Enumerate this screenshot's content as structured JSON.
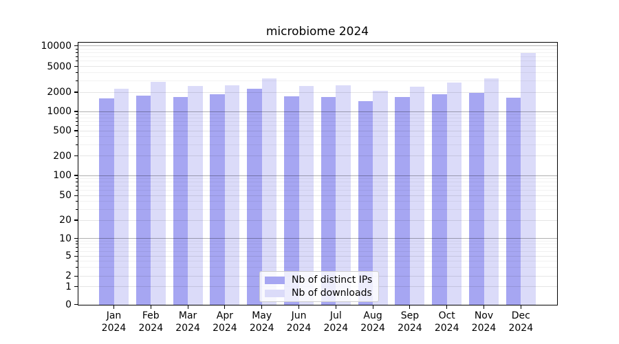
{
  "chart_data": {
    "type": "bar",
    "title": "microbiome 2024",
    "categories": [
      "Jan 2024",
      "Feb 2024",
      "Mar 2024",
      "Apr 2024",
      "May 2024",
      "Jun 2024",
      "Jul 2024",
      "Aug 2024",
      "Sep 2024",
      "Oct 2024",
      "Nov 2024",
      "Dec 2024"
    ],
    "series": [
      {
        "name": "Nb of distinct IPs",
        "color": "#a6a6f2",
        "values": [
          1600,
          1770,
          1680,
          1860,
          2260,
          1720,
          1680,
          1450,
          1680,
          1860,
          1950,
          1640
        ]
      },
      {
        "name": "Nb of downloads",
        "color": "#dbdbf9",
        "values": [
          2260,
          2900,
          2500,
          2560,
          3270,
          2500,
          2560,
          2100,
          2440,
          2830,
          3250,
          7800
        ]
      }
    ],
    "yticks": [
      0,
      1,
      2,
      5,
      10,
      20,
      50,
      100,
      200,
      500,
      1000,
      2000,
      5000,
      10000
    ],
    "scale": "symlog",
    "grid": true,
    "legend_position": "lower center",
    "ylim": [
      0,
      11400
    ]
  },
  "colors": {
    "major_grid": "rgba(0,0,0,0.31)",
    "labeled_minor_grid": "rgba(0,0,0,0.10)",
    "unlabeled_minor_grid": "rgba(0,0,0,0.055)"
  }
}
